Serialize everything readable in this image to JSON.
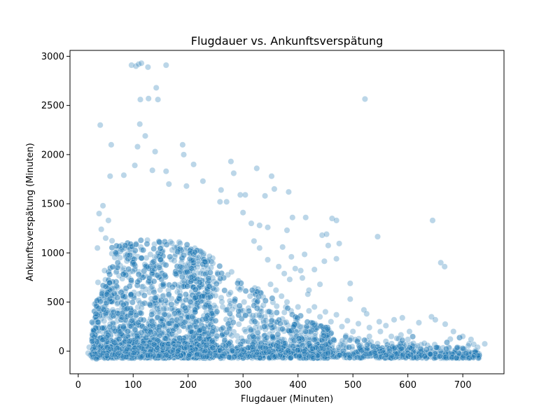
{
  "chart_data": {
    "type": "scatter",
    "title": "Flugdauer vs. Ankunftsverspätung",
    "xlabel": "Flugdauer (Minuten)",
    "ylabel": "Ankunftsverspätung (Minuten)",
    "xlim": [
      -15,
      775
    ],
    "ylim": [
      -230,
      3060
    ],
    "xticks": [
      0,
      100,
      200,
      300,
      400,
      500,
      600,
      700
    ],
    "yticks": [
      0,
      500,
      1000,
      1500,
      2000,
      2500,
      3000
    ],
    "xtick_labels": [
      "0",
      "100",
      "200",
      "300",
      "400",
      "500",
      "600",
      "700"
    ],
    "ytick_labels": [
      "0",
      "500",
      "1000",
      "1500",
      "2000",
      "2500",
      "3000"
    ],
    "grid": false,
    "color": "#1f77b4",
    "point_alpha": 0.3,
    "points": [
      [
        97,
        2910
      ],
      [
        105,
        2900
      ],
      [
        110,
        2920
      ],
      [
        115,
        2930
      ],
      [
        127,
        2890
      ],
      [
        160,
        2910
      ],
      [
        142,
        2680
      ],
      [
        113,
        2560
      ],
      [
        128,
        2570
      ],
      [
        145,
        2560
      ],
      [
        522,
        2565
      ],
      [
        40,
        2300
      ],
      [
        112,
        2310
      ],
      [
        122,
        2190
      ],
      [
        60,
        2100
      ],
      [
        108,
        2080
      ],
      [
        190,
        2100
      ],
      [
        192,
        2000
      ],
      [
        140,
        2030
      ],
      [
        278,
        1930
      ],
      [
        210,
        1900
      ],
      [
        103,
        1890
      ],
      [
        283,
        1810
      ],
      [
        325,
        1860
      ],
      [
        352,
        1780
      ],
      [
        160,
        1830
      ],
      [
        58,
        1780
      ],
      [
        83,
        1790
      ],
      [
        135,
        1840
      ],
      [
        165,
        1700
      ],
      [
        197,
        1680
      ],
      [
        227,
        1730
      ],
      [
        260,
        1640
      ],
      [
        295,
        1590
      ],
      [
        304,
        1590
      ],
      [
        258,
        1520
      ],
      [
        270,
        1520
      ],
      [
        300,
        1410
      ],
      [
        340,
        1580
      ],
      [
        357,
        1650
      ],
      [
        383,
        1620
      ],
      [
        390,
        1360
      ],
      [
        414,
        1360
      ],
      [
        462,
        1350
      ],
      [
        470,
        1330
      ],
      [
        444,
        1180
      ],
      [
        452,
        1190
      ],
      [
        545,
        1165
      ],
      [
        645,
        1330
      ],
      [
        660,
        900
      ],
      [
        667,
        860
      ],
      [
        495,
        690
      ],
      [
        440,
        680
      ],
      [
        420,
        620
      ],
      [
        470,
        940
      ],
      [
        455,
        1075
      ],
      [
        475,
        1095
      ],
      [
        495,
        530
      ],
      [
        520,
        420
      ],
      [
        525,
        380
      ],
      [
        548,
        300
      ],
      [
        560,
        260
      ],
      [
        575,
        320
      ],
      [
        590,
        340
      ],
      [
        603,
        200
      ],
      [
        620,
        290
      ],
      [
        643,
        350
      ],
      [
        650,
        320
      ],
      [
        668,
        275
      ],
      [
        683,
        200
      ],
      [
        700,
        150
      ],
      [
        715,
        120
      ],
      [
        720,
        70
      ],
      [
        740,
        75
      ],
      [
        600,
        120
      ],
      [
        630,
        80
      ],
      [
        700,
        30
      ],
      [
        710,
        55
      ],
      [
        690,
        40
      ],
      [
        660,
        0
      ],
      [
        580,
        130
      ],
      [
        560,
        100
      ],
      [
        530,
        150
      ],
      [
        500,
        200
      ],
      [
        480,
        250
      ],
      [
        460,
        300
      ],
      [
        440,
        350
      ],
      [
        420,
        410
      ],
      [
        400,
        450
      ],
      [
        380,
        500
      ],
      [
        370,
        560
      ],
      [
        360,
        620
      ],
      [
        350,
        680
      ],
      [
        395,
        840
      ],
      [
        405,
        820
      ],
      [
        385,
        730
      ],
      [
        375,
        790
      ],
      [
        365,
        860
      ],
      [
        345,
        930
      ],
      [
        330,
        1050
      ],
      [
        320,
        1120
      ],
      [
        345,
        1260
      ],
      [
        330,
        1280
      ],
      [
        315,
        1300
      ],
      [
        380,
        1230
      ],
      [
        372,
        1060
      ],
      [
        388,
        960
      ],
      [
        412,
        985
      ],
      [
        430,
        830
      ],
      [
        448,
        915
      ],
      [
        408,
        745
      ],
      [
        418,
        580
      ],
      [
        430,
        450
      ],
      [
        450,
        400
      ],
      [
        470,
        370
      ],
      [
        490,
        310
      ],
      [
        510,
        280
      ],
      [
        530,
        240
      ],
      [
        550,
        200
      ],
      [
        570,
        150
      ],
      [
        590,
        110
      ],
      [
        610,
        80
      ],
      [
        625,
        -40
      ],
      [
        640,
        -30
      ],
      [
        615,
        -60
      ],
      [
        600,
        -50
      ],
      [
        580,
        -30
      ],
      [
        560,
        -40
      ],
      [
        540,
        -20
      ],
      [
        520,
        -50
      ],
      [
        500,
        -30
      ],
      [
        30,
        480
      ],
      [
        35,
        1050
      ],
      [
        38,
        1400
      ],
      [
        42,
        1240
      ],
      [
        45,
        1480
      ],
      [
        50,
        1150
      ],
      [
        55,
        1330
      ],
      [
        48,
        820
      ],
      [
        36,
        700
      ],
      [
        25,
        100
      ],
      [
        20,
        40
      ],
      [
        18,
        -20
      ],
      [
        22,
        -40
      ],
      [
        28,
        -60
      ],
      [
        33,
        -80
      ]
    ]
  }
}
